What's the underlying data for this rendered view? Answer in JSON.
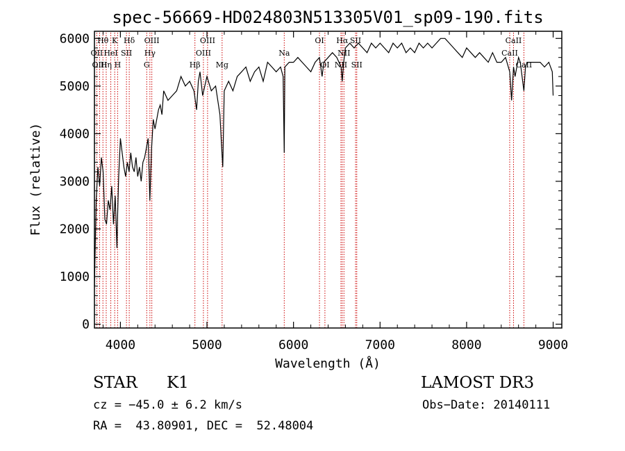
{
  "chart_data": {
    "type": "line",
    "title": "spec-56669-HD024803N513305V01_sp09-190.fits",
    "xlabel": "Wavelength (Å)",
    "ylabel": "Flux (relative)",
    "xlim": [
      3700,
      9100
    ],
    "ylim": [
      -80,
      6150
    ],
    "xticks": [
      4000,
      5000,
      6000,
      7000,
      8000,
      9000
    ],
    "yticks": [
      0,
      1000,
      2000,
      3000,
      4000,
      5000,
      6000
    ],
    "grid": false,
    "series": [
      {
        "x": [
          3700,
          3720,
          3740,
          3760,
          3780,
          3800,
          3820,
          3840,
          3860,
          3880,
          3900,
          3920,
          3940,
          3960,
          3968,
          3980,
          4000,
          4020,
          4040,
          4060,
          4080,
          4100,
          4120,
          4140,
          4160,
          4180,
          4200,
          4220,
          4240,
          4260,
          4280,
          4300,
          4320,
          4340,
          4360,
          4380,
          4400,
          4420,
          4440,
          4460,
          4480,
          4500,
          4550,
          4600,
          4650,
          4700,
          4750,
          4800,
          4850,
          4880,
          4900,
          4920,
          4950,
          5000,
          5050,
          5100,
          5150,
          5170,
          5183,
          5200,
          5250,
          5300,
          5350,
          5400,
          5450,
          5500,
          5550,
          5600,
          5650,
          5700,
          5750,
          5800,
          5850,
          5880,
          5893,
          5900,
          5950,
          6000,
          6050,
          6100,
          6150,
          6200,
          6250,
          6300,
          6330,
          6350,
          6400,
          6450,
          6500,
          6550,
          6563,
          6580,
          6600,
          6650,
          6700,
          6750,
          6800,
          6850,
          6900,
          6950,
          7000,
          7050,
          7100,
          7150,
          7200,
          7250,
          7300,
          7350,
          7400,
          7450,
          7500,
          7550,
          7600,
          7650,
          7700,
          7750,
          7800,
          7850,
          7900,
          7950,
          8000,
          8050,
          8100,
          8150,
          8200,
          8250,
          8300,
          8350,
          8400,
          8450,
          8498,
          8520,
          8542,
          8560,
          8600,
          8620,
          8662,
          8680,
          8700,
          8750,
          8800,
          8850,
          8900,
          8950,
          8990,
          9000
        ],
        "values": [
          800,
          2600,
          3300,
          2900,
          3500,
          3200,
          2200,
          2100,
          2600,
          2400,
          2900,
          2100,
          2700,
          1600,
          2300,
          3100,
          3900,
          3600,
          3300,
          3100,
          3400,
          3200,
          3600,
          3300,
          3200,
          3500,
          3100,
          3300,
          3000,
          3400,
          3500,
          3700,
          3900,
          2600,
          3700,
          4300,
          4100,
          4300,
          4500,
          4600,
          4400,
          4900,
          4700,
          4800,
          4900,
          5200,
          5000,
          5100,
          4900,
          4500,
          5100,
          5300,
          4800,
          5200,
          4900,
          5000,
          4400,
          3700,
          3300,
          4900,
          5100,
          4900,
          5200,
          5300,
          5400,
          5100,
          5300,
          5400,
          5100,
          5500,
          5400,
          5300,
          5400,
          5200,
          3600,
          5400,
          5500,
          5500,
          5600,
          5500,
          5400,
          5300,
          5500,
          5600,
          5200,
          5500,
          5600,
          5700,
          5600,
          5400,
          5100,
          5500,
          5800,
          5900,
          5800,
          5900,
          5800,
          5700,
          5900,
          5800,
          5900,
          5800,
          5700,
          5900,
          5800,
          5900,
          5700,
          5800,
          5700,
          5900,
          5800,
          5900,
          5800,
          5900,
          6000,
          6000,
          5900,
          5800,
          5700,
          5600,
          5800,
          5700,
          5600,
          5700,
          5600,
          5500,
          5700,
          5500,
          5500,
          5600,
          5300,
          4700,
          5400,
          5200,
          5600,
          5500,
          4900,
          5400,
          5500,
          5500,
          5500,
          5500,
          5400,
          5500,
          5300,
          4800
        ]
      }
    ],
    "line_markers": [
      {
        "label": "Hθ",
        "x": 3798,
        "row": 0
      },
      {
        "label": "OII",
        "x": 3727,
        "row": 1
      },
      {
        "label": "OIII",
        "x": 3760,
        "row": 2
      },
      {
        "label": "Hη",
        "x": 3836,
        "row": 2
      },
      {
        "label": "HeI",
        "x": 3889,
        "row": 1
      },
      {
        "label": "K",
        "x": 3934,
        "row": 0
      },
      {
        "label": "H",
        "x": 3968,
        "row": 2
      },
      {
        "label": "SII",
        "x": 4070,
        "row": 1
      },
      {
        "label": "Hδ",
        "x": 4102,
        "row": 0
      },
      {
        "label": "G",
        "x": 4304,
        "row": 2
      },
      {
        "label": "Hγ",
        "x": 4341,
        "row": 1
      },
      {
        "label": "OIII",
        "x": 4363,
        "row": 0
      },
      {
        "label": "Hβ",
        "x": 4861,
        "row": 2
      },
      {
        "label": "OIII",
        "x": 4959,
        "row": 1
      },
      {
        "label": "OIII",
        "x": 5007,
        "row": 0
      },
      {
        "label": "Mg",
        "x": 5175,
        "row": 2
      },
      {
        "label": "Na",
        "x": 5893,
        "row": 1
      },
      {
        "label": "OI",
        "x": 6300,
        "row": 0
      },
      {
        "label": "OI",
        "x": 6363,
        "row": 2
      },
      {
        "label": "NII",
        "x": 6548,
        "row": 2
      },
      {
        "label": "Hα",
        "x": 6563,
        "row": 0
      },
      {
        "label": "NII",
        "x": 6583,
        "row": 1
      },
      {
        "label": "SII",
        "x": 6717,
        "row": 0
      },
      {
        "label": "SII",
        "x": 6731,
        "row": 2
      },
      {
        "label": "CaII",
        "x": 8498,
        "row": 1
      },
      {
        "label": "CaII",
        "x": 8542,
        "row": 0
      },
      {
        "label": "CaII",
        "x": 8662,
        "row": 2
      }
    ]
  },
  "info": {
    "object_class": "STAR",
    "subclass": "K1",
    "survey": "LAMOST DR3",
    "cz": "cz = −45.0 ± 6.2 km/s",
    "obs_date": "Obs−Date: 20140111",
    "radec": "RA =  43.80901, DEC =  52.48004"
  },
  "colors": {
    "spectrum": "#000000",
    "line_marker": "#cc0000",
    "axis": "#000000"
  }
}
